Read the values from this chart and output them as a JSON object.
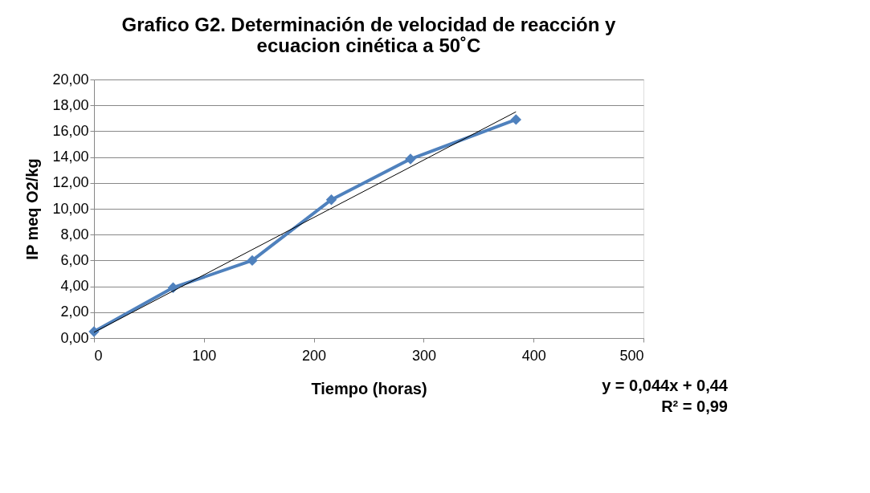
{
  "chart_data": {
    "type": "line",
    "title": "Grafico G2. Determinación de velocidad de reacción y ecuacion cinética a 50˚C",
    "xlabel": "Tiempo (horas)",
    "ylabel": "IP meq O2/kg",
    "x": [
      0,
      72,
      144,
      216,
      288,
      384
    ],
    "series": [
      {
        "color": "#4f81bd",
        "values": [
          0.5,
          3.9,
          6.0,
          10.7,
          13.85,
          16.9
        ],
        "marker": "diamond",
        "line_style": "solid"
      },
      {
        "type": "line",
        "color": "#000000",
        "x": [
          0,
          384
        ],
        "values": [
          0.44,
          17.5
        ],
        "marker": "none",
        "line_style": "solid"
      }
    ],
    "xlim": [
      0,
      500
    ],
    "xticks": [
      0,
      100,
      200,
      300,
      400,
      500
    ],
    "ylim": [
      0,
      20
    ],
    "yticks": [
      {
        "value": 0,
        "label": "0,00"
      },
      {
        "value": 2,
        "label": "2,00"
      },
      {
        "value": 4,
        "label": "4,00"
      },
      {
        "value": 6,
        "label": "6,00"
      },
      {
        "value": 8,
        "label": "8,00"
      },
      {
        "value": 10,
        "label": "10,00"
      },
      {
        "value": 12,
        "label": "12,00"
      },
      {
        "value": 14,
        "label": "14,00"
      },
      {
        "value": 16,
        "label": "16,00"
      },
      {
        "value": 18,
        "label": "18,00"
      },
      {
        "value": 20,
        "label": "20,00"
      }
    ],
    "grid": "y",
    "annotations": [
      "y = 0,044x + 0,44",
      "R² = 0,99"
    ]
  }
}
